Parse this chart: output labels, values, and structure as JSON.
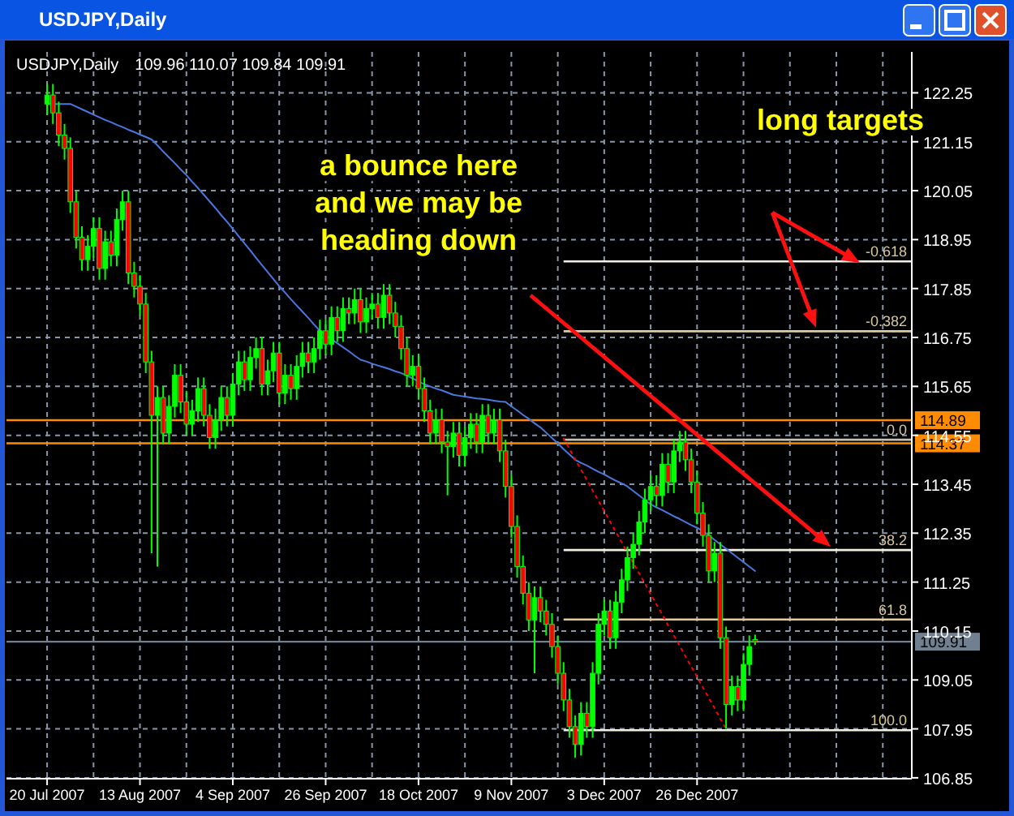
{
  "chart_data": {
    "type": "candlestick",
    "title": "USDJPY,Daily",
    "subtitle": "109.96 110.07 109.84 109.91",
    "categories": [
      "20 Jul 2007",
      null,
      null,
      null,
      null,
      null,
      null,
      null,
      null,
      null,
      null,
      null,
      null,
      null,
      null,
      null,
      "13 Aug 2007",
      null,
      null,
      null,
      null,
      null,
      null,
      null,
      null,
      null,
      null,
      null,
      null,
      null,
      null,
      null,
      "4 Sep 2007",
      null,
      null,
      null,
      null,
      null,
      null,
      null,
      null,
      null,
      null,
      null,
      null,
      null,
      null,
      null,
      "26 Sep 2007",
      null,
      null,
      null,
      null,
      null,
      null,
      null,
      null,
      null,
      null,
      null,
      null,
      null,
      null,
      null,
      "18 Oct 2007",
      null,
      null,
      null,
      null,
      null,
      null,
      null,
      null,
      null,
      null,
      null,
      null,
      null,
      null,
      null,
      "9 Nov 2007",
      null,
      null,
      null,
      null,
      null,
      null,
      null,
      null,
      null,
      null,
      null,
      null,
      null,
      null,
      null,
      "3 Dec 2007",
      null,
      null,
      null,
      null,
      null,
      null,
      null,
      null,
      null,
      null,
      null,
      null,
      null,
      null,
      null,
      "26 Dec 2007",
      null,
      null,
      null,
      null,
      null,
      null,
      null,
      null,
      null,
      null
    ],
    "color": "#00ff00",
    "ohlc": [
      [
        122.0,
        122.45,
        121.75,
        122.2
      ],
      [
        122.2,
        122.45,
        121.55,
        121.8
      ],
      [
        121.8,
        122.05,
        121.05,
        121.3
      ],
      [
        121.3,
        121.55,
        120.75,
        121.0
      ],
      [
        121.0,
        121.25,
        119.55,
        119.8
      ],
      [
        119.8,
        120.05,
        118.75,
        119.0
      ],
      [
        119.0,
        119.25,
        118.25,
        118.5
      ],
      [
        118.5,
        119.05,
        118.25,
        118.8
      ],
      [
        118.8,
        119.45,
        118.55,
        119.2
      ],
      [
        119.2,
        119.45,
        118.05,
        118.3
      ],
      [
        118.3,
        119.15,
        118.05,
        118.9
      ],
      [
        118.9,
        119.15,
        118.35,
        118.6
      ],
      [
        118.6,
        119.65,
        118.35,
        119.4
      ],
      [
        119.4,
        120.05,
        119.15,
        119.8
      ],
      [
        119.8,
        120.05,
        117.95,
        118.2
      ],
      [
        118.2,
        118.45,
        117.65,
        117.9
      ],
      [
        117.9,
        118.15,
        117.25,
        117.5
      ],
      [
        117.5,
        117.75,
        115.95,
        116.2
      ],
      [
        116.2,
        116.45,
        111.9,
        115.0
      ],
      [
        115.0,
        115.65,
        111.6,
        115.4
      ],
      [
        115.4,
        115.65,
        114.35,
        114.6
      ],
      [
        114.6,
        115.45,
        114.35,
        115.2
      ],
      [
        115.2,
        116.15,
        114.95,
        115.9
      ],
      [
        115.9,
        116.15,
        115.05,
        115.3
      ],
      [
        115.3,
        115.55,
        114.55,
        114.8
      ],
      [
        114.8,
        115.35,
        114.55,
        115.1
      ],
      [
        115.1,
        115.85,
        114.85,
        115.6
      ],
      [
        115.6,
        115.85,
        114.75,
        115.0
      ],
      [
        115.0,
        115.25,
        114.25,
        114.5
      ],
      [
        114.5,
        115.15,
        114.25,
        114.9
      ],
      [
        114.9,
        115.65,
        114.65,
        115.4
      ],
      [
        115.4,
        115.65,
        114.75,
        115.0
      ],
      [
        115.0,
        115.95,
        114.75,
        115.7
      ],
      [
        115.7,
        116.45,
        115.45,
        116.2
      ],
      [
        116.2,
        116.45,
        115.55,
        115.8
      ],
      [
        115.8,
        116.55,
        115.55,
        116.3
      ],
      [
        116.3,
        116.75,
        116.05,
        116.5
      ],
      [
        116.5,
        116.75,
        115.45,
        115.7
      ],
      [
        115.7,
        116.25,
        115.45,
        116.0
      ],
      [
        116.0,
        116.65,
        115.75,
        116.4
      ],
      [
        116.4,
        116.65,
        115.25,
        115.5
      ],
      [
        115.5,
        116.15,
        115.25,
        115.9
      ],
      [
        115.9,
        116.15,
        115.35,
        115.6
      ],
      [
        115.6,
        116.35,
        115.35,
        116.1
      ],
      [
        116.1,
        116.65,
        115.85,
        116.4
      ],
      [
        116.4,
        116.65,
        115.95,
        116.2
      ],
      [
        116.2,
        116.75,
        115.95,
        116.5
      ],
      [
        116.5,
        117.15,
        116.25,
        116.9
      ],
      [
        116.9,
        117.15,
        116.35,
        116.6
      ],
      [
        116.6,
        117.45,
        116.35,
        117.2
      ],
      [
        117.2,
        117.45,
        116.65,
        116.9
      ],
      [
        116.9,
        117.65,
        116.65,
        117.4
      ],
      [
        117.4,
        117.65,
        117.05,
        117.3
      ],
      [
        117.3,
        117.85,
        117.05,
        117.6
      ],
      [
        117.6,
        117.85,
        116.85,
        117.1
      ],
      [
        117.1,
        117.65,
        116.85,
        117.4
      ],
      [
        117.4,
        117.75,
        117.15,
        117.5
      ],
      [
        117.5,
        117.75,
        116.95,
        117.2
      ],
      [
        117.2,
        117.95,
        116.95,
        117.7
      ],
      [
        117.7,
        117.95,
        117.05,
        117.3
      ],
      [
        117.3,
        117.55,
        116.75,
        117.0
      ],
      [
        117.0,
        117.25,
        116.25,
        116.5
      ],
      [
        116.5,
        116.75,
        115.65,
        115.9
      ],
      [
        115.9,
        116.35,
        115.65,
        116.1
      ],
      [
        116.1,
        116.35,
        115.35,
        115.6
      ],
      [
        115.6,
        115.85,
        114.85,
        115.1
      ],
      [
        115.1,
        115.35,
        114.35,
        114.6
      ],
      [
        114.6,
        115.15,
        114.35,
        114.9
      ],
      [
        114.9,
        115.15,
        114.15,
        114.4
      ],
      [
        114.4,
        114.65,
        113.2,
        114.3
      ],
      [
        114.3,
        114.85,
        114.05,
        114.6
      ],
      [
        114.6,
        114.85,
        113.85,
        114.1
      ],
      [
        114.1,
        114.75,
        113.85,
        114.5
      ],
      [
        114.5,
        115.05,
        114.25,
        114.8
      ],
      [
        114.8,
        115.05,
        114.15,
        114.4
      ],
      [
        114.4,
        115.25,
        114.15,
        115.0
      ],
      [
        115.0,
        115.25,
        114.35,
        114.6
      ],
      [
        114.6,
        115.15,
        114.35,
        114.9
      ],
      [
        114.9,
        115.15,
        113.95,
        114.2
      ],
      [
        114.2,
        114.45,
        113.15,
        113.4
      ],
      [
        113.4,
        113.65,
        112.25,
        112.5
      ],
      [
        112.5,
        112.75,
        111.35,
        111.6
      ],
      [
        111.6,
        111.85,
        110.75,
        111.0
      ],
      [
        111.0,
        111.25,
        110.15,
        110.4
      ],
      [
        110.4,
        111.15,
        109.2,
        110.9
      ],
      [
        110.9,
        111.15,
        110.35,
        110.6
      ],
      [
        110.6,
        110.85,
        110.05,
        110.3
      ],
      [
        110.3,
        110.55,
        109.55,
        109.8
      ],
      [
        109.8,
        110.05,
        108.95,
        109.2
      ],
      [
        109.2,
        109.45,
        108.35,
        108.6
      ],
      [
        108.6,
        108.85,
        107.75,
        108.0
      ],
      [
        108.0,
        108.25,
        107.3,
        107.6
      ],
      [
        107.6,
        108.55,
        107.35,
        108.3
      ],
      [
        108.3,
        108.55,
        107.75,
        108.0
      ],
      [
        108.0,
        109.45,
        107.75,
        109.2
      ],
      [
        109.2,
        110.55,
        108.95,
        110.3
      ],
      [
        110.3,
        110.85,
        110.05,
        110.6
      ],
      [
        110.6,
        110.85,
        109.75,
        110.0
      ],
      [
        110.0,
        111.05,
        109.75,
        110.8
      ],
      [
        110.8,
        111.55,
        110.55,
        111.3
      ],
      [
        111.3,
        112.05,
        111.05,
        111.8
      ],
      [
        111.8,
        112.35,
        111.55,
        112.1
      ],
      [
        112.1,
        112.85,
        111.85,
        112.6
      ],
      [
        112.6,
        113.35,
        112.35,
        113.1
      ],
      [
        113.1,
        113.65,
        112.85,
        113.4
      ],
      [
        113.4,
        113.65,
        112.95,
        113.2
      ],
      [
        113.2,
        114.15,
        112.95,
        113.9
      ],
      [
        113.9,
        114.15,
        113.25,
        113.5
      ],
      [
        113.5,
        114.45,
        113.25,
        114.2
      ],
      [
        114.2,
        114.65,
        113.95,
        114.4
      ],
      [
        114.4,
        114.65,
        113.75,
        114.0
      ],
      [
        114.0,
        114.25,
        113.25,
        113.5
      ],
      [
        113.5,
        113.75,
        112.55,
        112.8
      ],
      [
        112.8,
        113.05,
        112.05,
        112.3
      ],
      [
        112.3,
        112.55,
        111.25,
        111.5
      ],
      [
        111.5,
        112.15,
        111.25,
        111.9
      ],
      [
        111.9,
        112.15,
        109.75,
        110.0
      ],
      [
        110.0,
        110.25,
        107.95,
        108.5
      ],
      [
        108.5,
        109.15,
        108.25,
        108.9
      ],
      [
        108.9,
        109.15,
        108.35,
        108.6
      ],
      [
        108.6,
        109.65,
        108.35,
        109.4
      ],
      [
        109.4,
        110.05,
        109.15,
        109.8
      ],
      [
        109.96,
        110.07,
        109.84,
        109.91
      ]
    ],
    "colors": [
      "#00ff00",
      "#ff0000",
      "#ff0000",
      "#ff0000",
      "#ff0000",
      "#ff0000",
      "#ff0000",
      "#00ff00",
      "#00ff00",
      "#ff0000",
      "#00ff00",
      "#ff0000",
      "#00ff00",
      "#00ff00",
      "#ff0000",
      "#ff0000",
      "#ff0000",
      "#ff0000",
      "#ff0000",
      "#00ff00",
      "#ff0000",
      "#00ff00",
      "#00ff00",
      "#ff0000",
      "#ff0000",
      "#00ff00",
      "#00ff00",
      "#ff0000",
      "#ff0000",
      "#00ff00",
      "#00ff00",
      "#ff0000",
      "#00ff00",
      "#00ff00",
      "#ff0000",
      "#00ff00",
      "#00ff00",
      "#ff0000",
      "#00ff00",
      "#00ff00",
      "#ff0000",
      "#00ff00",
      "#ff0000",
      "#00ff00",
      "#00ff00",
      "#ff0000",
      "#00ff00",
      "#00ff00",
      "#ff0000",
      "#00ff00",
      "#ff0000",
      "#00ff00",
      "#ff0000",
      "#00ff00",
      "#ff0000",
      "#00ff00",
      "#00ff00",
      "#ff0000",
      "#00ff00",
      "#ff0000",
      "#ff0000",
      "#ff0000",
      "#ff0000",
      "#00ff00",
      "#ff0000",
      "#ff0000",
      "#ff0000",
      "#00ff00",
      "#ff0000",
      "#ff0000",
      "#00ff00",
      "#ff0000",
      "#00ff00",
      "#00ff00",
      "#ff0000",
      "#00ff00",
      "#ff0000",
      "#00ff00",
      "#ff0000",
      "#ff0000",
      "#ff0000",
      "#ff0000",
      "#ff0000",
      "#ff0000",
      "#00ff00",
      "#ff0000",
      "#ff0000",
      "#ff0000",
      "#ff0000",
      "#ff0000",
      "#ff0000",
      "#ff0000",
      "#00ff00",
      "#ff0000",
      "#00ff00",
      "#00ff00",
      "#00ff00",
      "#ff0000",
      "#00ff00",
      "#00ff00",
      "#00ff00",
      "#00ff00",
      "#00ff00",
      "#00ff00",
      "#00ff00",
      "#ff0000",
      "#00ff00",
      "#ff0000",
      "#00ff00",
      "#00ff00",
      "#ff0000",
      "#ff0000",
      "#ff0000",
      "#ff0000",
      "#ff0000",
      "#00ff00",
      "#ff0000",
      "#ff0000",
      "#00ff00",
      "#ff0000",
      "#00ff00",
      "#00ff00",
      "#ff0000"
    ],
    "series": [
      {
        "type": "line",
        "color": "#4a78e0",
        "values": [
          122.0,
          122.0,
          122.0,
          122.0,
          122.0,
          121.94,
          121.88,
          121.82,
          121.76,
          121.7,
          121.64,
          121.59,
          121.53,
          121.48,
          121.42,
          121.37,
          121.31,
          121.26,
          121.2,
          121.07,
          120.93,
          120.8,
          120.67,
          120.53,
          120.4,
          120.25,
          120.11,
          119.96,
          119.81,
          119.66,
          119.5,
          119.35,
          119.19,
          119.03,
          118.87,
          118.71,
          118.54,
          118.38,
          118.22,
          118.06,
          117.9,
          117.76,
          117.61,
          117.47,
          117.33,
          117.19,
          117.04,
          116.9,
          116.81,
          116.71,
          116.62,
          116.53,
          116.44,
          116.34,
          116.25,
          116.21,
          116.16,
          116.12,
          116.08,
          116.04,
          115.99,
          115.95,
          115.89,
          115.83,
          115.76,
          115.7,
          115.65,
          115.6,
          115.56,
          115.51,
          115.46,
          115.44,
          115.42,
          115.4,
          115.38,
          115.37,
          115.35,
          115.33,
          115.31,
          115.3,
          115.2,
          115.11,
          115.01,
          114.92,
          114.82,
          114.73,
          114.61,
          114.49,
          114.37,
          114.24,
          114.12,
          114.0,
          113.93,
          113.87,
          113.8,
          113.73,
          113.67,
          113.6,
          113.53,
          113.47,
          113.4,
          113.3,
          113.2,
          113.1,
          113.0,
          112.93,
          112.87,
          112.8,
          112.73,
          112.67,
          112.6,
          112.53,
          112.47,
          112.4,
          112.3,
          112.2,
          112.1,
          112.0,
          111.9,
          111.8,
          111.7,
          111.6,
          111.5
        ]
      },
      {
        "type": "line",
        "color": "#ff0000",
        "line_style": "dotted",
        "values": [
          null,
          null,
          null,
          null,
          null,
          null,
          null,
          null,
          null,
          null,
          null,
          null,
          null,
          null,
          null,
          null,
          null,
          null,
          null,
          null,
          null,
          null,
          null,
          null,
          null,
          null,
          null,
          null,
          null,
          null,
          null,
          null,
          null,
          null,
          null,
          null,
          null,
          null,
          null,
          null,
          null,
          null,
          null,
          null,
          null,
          null,
          null,
          null,
          null,
          null,
          null,
          null,
          null,
          null,
          null,
          null,
          null,
          null,
          null,
          null,
          null,
          null,
          null,
          null,
          null,
          null,
          null,
          null,
          null,
          null,
          null,
          null,
          null,
          null,
          null,
          null,
          null,
          null,
          null,
          null,
          null,
          null,
          null,
          null,
          null,
          null,
          null,
          null,
          null,
          114.48,
          114.25,
          114.01,
          113.78,
          113.55,
          113.31,
          113.08,
          112.85,
          112.61,
          112.38,
          112.15,
          111.91,
          111.68,
          111.45,
          111.22,
          110.98,
          110.75,
          110.52,
          110.28,
          110.05,
          109.82,
          109.58,
          109.35,
          109.12,
          108.88,
          108.65,
          108.42,
          108.18,
          107.95,
          null,
          null,
          null,
          null,
          null
        ]
      }
    ],
    "ylim": [
      106.83,
      123.17
    ],
    "yticks": [
      122.25,
      121.15,
      120.05,
      118.95,
      117.85,
      116.75,
      115.65,
      114.55,
      113.45,
      112.35,
      111.25,
      110.15,
      109.05,
      107.95,
      106.85
    ],
    "grid": true,
    "ref_lines": [
      {
        "axis": "y",
        "value": 118.46,
        "color": "#f4f0e0"
      },
      {
        "axis": "y",
        "value": 116.89,
        "color": "#e0cca0"
      },
      {
        "axis": "y",
        "value": 114.45,
        "color": "#c8c0b0"
      },
      {
        "axis": "y",
        "value": 111.97,
        "color": "#f4f0e0"
      },
      {
        "axis": "y",
        "value": 110.41,
        "color": "#e0cca0"
      },
      {
        "axis": "y",
        "value": 107.92,
        "color": "#f4f0e0"
      },
      {
        "axis": "y",
        "value": 114.89,
        "label": "114.89",
        "color": "#ff8c00"
      },
      {
        "axis": "y",
        "value": 114.37,
        "label": "114.37",
        "color": "#ff8c00"
      },
      {
        "axis": "y",
        "value": 109.91,
        "label": "109.91",
        "color": "#708090"
      }
    ],
    "annotations": [
      "a bounce here\nand we may be\nheading down",
      "long targets",
      {
        "text": "-0.618",
        "y": 118.46
      },
      {
        "text": "-0.382",
        "y": 116.89
      },
      {
        "text": "0.0",
        "y": 114.45
      },
      {
        "text": "38.2",
        "y": 111.97
      },
      {
        "text": "61.8",
        "y": 110.41
      },
      {
        "text": "100.0",
        "y": 107.92
      }
    ]
  }
}
